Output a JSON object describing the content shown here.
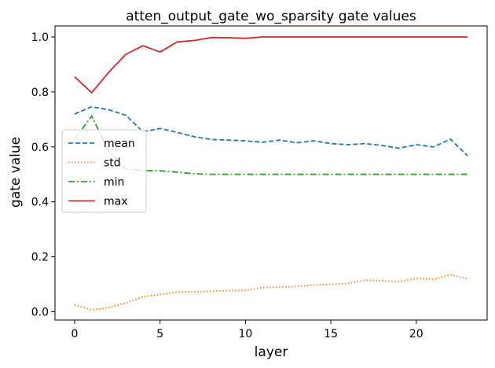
{
  "chart_data": {
    "type": "line",
    "title": "atten_output_gate_wo_sparsity gate values",
    "xlabel": "layer",
    "ylabel": "gate value",
    "xlim": [
      -1.15,
      24.15
    ],
    "ylim": [
      -0.03,
      1.04
    ],
    "xticks": [
      0,
      5,
      10,
      15,
      20
    ],
    "xtick_labels": [
      "0",
      "5",
      "10",
      "15",
      "20"
    ],
    "yticks": [
      0.0,
      0.2,
      0.4,
      0.6,
      0.8,
      1.0
    ],
    "ytick_labels": [
      "0.0",
      "0.2",
      "0.4",
      "0.6",
      "0.8",
      "1.0"
    ],
    "grid": false,
    "legend_position": "center-left",
    "x": [
      0,
      1,
      2,
      3,
      4,
      5,
      6,
      7,
      8,
      9,
      10,
      11,
      12,
      13,
      14,
      15,
      16,
      17,
      18,
      19,
      20,
      21,
      22,
      23
    ],
    "series": [
      {
        "name": "mean",
        "color": "#1f77b4",
        "dash": "dashed",
        "values": [
          0.72,
          0.746,
          0.735,
          0.715,
          0.655,
          0.667,
          0.653,
          0.637,
          0.627,
          0.625,
          0.622,
          0.617,
          0.625,
          0.615,
          0.622,
          0.612,
          0.608,
          0.612,
          0.605,
          0.595,
          0.608,
          0.6,
          0.628,
          0.568
        ]
      },
      {
        "name": "std",
        "color": "#ff7f0e",
        "dash": "dotted",
        "values": [
          0.025,
          0.007,
          0.015,
          0.033,
          0.055,
          0.063,
          0.072,
          0.072,
          0.075,
          0.077,
          0.078,
          0.088,
          0.09,
          0.092,
          0.097,
          0.1,
          0.103,
          0.115,
          0.113,
          0.11,
          0.122,
          0.118,
          0.135,
          0.12
        ]
      },
      {
        "name": "min",
        "color": "#2ca02c",
        "dash": "dashdot",
        "values": [
          0.628,
          0.712,
          0.585,
          0.52,
          0.514,
          0.513,
          0.508,
          0.502,
          0.5,
          0.5,
          0.5,
          0.5,
          0.5,
          0.5,
          0.5,
          0.5,
          0.5,
          0.5,
          0.5,
          0.5,
          0.5,
          0.5,
          0.5,
          0.5
        ]
      },
      {
        "name": "max",
        "color": "#d62728",
        "dash": "solid",
        "values": [
          0.855,
          0.797,
          0.872,
          0.937,
          0.968,
          0.945,
          0.982,
          0.987,
          0.998,
          0.997,
          0.995,
          1.0,
          1.0,
          1.0,
          1.0,
          1.0,
          1.0,
          1.0,
          1.0,
          1.0,
          1.0,
          1.0,
          1.0,
          1.0
        ]
      }
    ]
  }
}
